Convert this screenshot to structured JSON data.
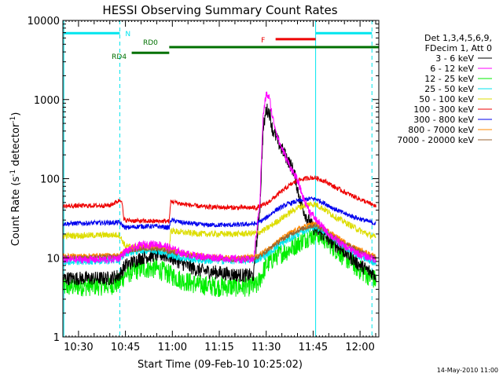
{
  "chart_data": {
    "type": "line",
    "title": "HESSI Observing Summary Count Rates",
    "xlabel": "Start Time (09-Feb-10 10:25:02)",
    "ylabel_main": "Count Rate (s",
    "ylabel_sup1": "-1",
    "ylabel_mid": " detector",
    "ylabel_sup2": "-1",
    "ylabel_end": ")",
    "y_scale": "log",
    "ylim": [
      1,
      10000
    ],
    "xlim_minutes": [
      625,
      726
    ],
    "x_ticks": [
      {
        "min": 630,
        "label": "10:30"
      },
      {
        "min": 645,
        "label": "10:45"
      },
      {
        "min": 660,
        "label": "11:00"
      },
      {
        "min": 675,
        "label": "11:15"
      },
      {
        "min": 690,
        "label": "11:30"
      },
      {
        "min": 705,
        "label": "11:45"
      },
      {
        "min": 720,
        "label": "12:00"
      }
    ],
    "y_ticks": [
      {
        "value": 1,
        "label": "1"
      },
      {
        "value": 10,
        "label": "10"
      },
      {
        "value": 100,
        "label": "100"
      },
      {
        "value": 1000,
        "label": "1000"
      },
      {
        "value": 10000,
        "label": "10000"
      }
    ],
    "legend_header": [
      "Det 1,3,4,5,6,9,",
      "FDecim 1, Att 0"
    ],
    "legend_placement": "right",
    "vertical_lines": [
      {
        "min": 625.3,
        "style": "solid",
        "color": "#00e5ee"
      },
      {
        "min": 643.2,
        "style": "dashed",
        "color": "#00e5ee"
      },
      {
        "min": 705.8,
        "style": "solid",
        "color": "#00e5ee"
      },
      {
        "min": 723.8,
        "style": "dashed",
        "color": "#00e5ee"
      }
    ],
    "flag_bars": [
      {
        "label": "N",
        "segments": [
          [
            625.3,
            643.2
          ],
          [
            705.8,
            723.8
          ]
        ],
        "y_level": 6900,
        "color": "#00e5ee"
      },
      {
        "label": "F",
        "segments": [
          [
            693,
            705.8
          ]
        ],
        "y_level": 5800,
        "color": "#ee0000"
      },
      {
        "label": "RD0",
        "segments": [
          [
            659,
            726
          ]
        ],
        "y_level": 4600,
        "color": "#007000"
      },
      {
        "label": "RD4",
        "segments": [
          [
            647,
            659
          ]
        ],
        "y_level": 3900,
        "color": "#007000"
      }
    ],
    "series": [
      {
        "name": "3 - 6 keV",
        "color": "#000000",
        "points": [
          [
            625,
            5.5
          ],
          [
            640,
            5.5
          ],
          [
            643,
            6
          ],
          [
            645,
            8
          ],
          [
            650,
            10
          ],
          [
            655,
            11
          ],
          [
            659,
            10.5
          ],
          [
            663,
            8.5
          ],
          [
            668,
            7
          ],
          [
            675,
            6.5
          ],
          [
            682,
            6
          ],
          [
            686,
            6
          ],
          [
            688,
            45
          ],
          [
            689,
            400
          ],
          [
            690,
            750
          ],
          [
            691,
            700
          ],
          [
            692,
            420
          ],
          [
            694,
            280
          ],
          [
            697,
            170
          ],
          [
            699,
            120
          ],
          [
            700,
            75
          ],
          [
            701,
            50
          ],
          [
            703,
            32
          ],
          [
            705,
            24
          ],
          [
            707,
            21
          ],
          [
            710,
            17
          ],
          [
            715,
            12
          ],
          [
            720,
            8
          ],
          [
            725,
            6
          ]
        ],
        "noise": 0.09
      },
      {
        "name": "6 - 12 keV",
        "color": "#ff00ff",
        "points": [
          [
            625,
            9.5
          ],
          [
            640,
            9.5
          ],
          [
            643,
            10
          ],
          [
            645,
            12
          ],
          [
            650,
            14.5
          ],
          [
            655,
            15
          ],
          [
            659,
            13.5
          ],
          [
            663,
            11.5
          ],
          [
            668,
            10.5
          ],
          [
            675,
            10
          ],
          [
            682,
            9.5
          ],
          [
            686,
            9.5
          ],
          [
            688,
            55
          ],
          [
            689,
            600
          ],
          [
            690,
            1180
          ],
          [
            691,
            1050
          ],
          [
            692,
            600
          ],
          [
            694,
            300
          ],
          [
            697,
            160
          ],
          [
            700,
            95
          ],
          [
            702,
            55
          ],
          [
            704,
            38
          ],
          [
            706,
            30
          ],
          [
            710,
            20
          ],
          [
            715,
            14
          ],
          [
            720,
            11
          ],
          [
            725,
            9.5
          ]
        ],
        "noise": 0.05
      },
      {
        "name": "12 - 25 keV",
        "color": "#00ee00",
        "points": [
          [
            625,
            4.3
          ],
          [
            640,
            4.5
          ],
          [
            643,
            4.8
          ],
          [
            645,
            6.2
          ],
          [
            650,
            7.3
          ],
          [
            655,
            7.3
          ],
          [
            659,
            6.2
          ],
          [
            663,
            5.2
          ],
          [
            668,
            4.6
          ],
          [
            675,
            4.3
          ],
          [
            682,
            4.3
          ],
          [
            687,
            4.4
          ],
          [
            690,
            8
          ],
          [
            693,
            10.5
          ],
          [
            697,
            12.5
          ],
          [
            700,
            15
          ],
          [
            703,
            18
          ],
          [
            706,
            20
          ],
          [
            709,
            17
          ],
          [
            712,
            13
          ],
          [
            716,
            9.5
          ],
          [
            720,
            7
          ],
          [
            725,
            5.2
          ]
        ],
        "noise": 0.13
      },
      {
        "name": "25 - 50 keV",
        "color": "#00e5ee",
        "points": [
          [
            625,
            9
          ],
          [
            643,
            9.3
          ],
          [
            645,
            11.5
          ],
          [
            650,
            12.5
          ],
          [
            655,
            12.5
          ],
          [
            659,
            11
          ],
          [
            663,
            10
          ],
          [
            670,
            9.3
          ],
          [
            680,
            9.3
          ],
          [
            687,
            9.5
          ],
          [
            690,
            11
          ],
          [
            693,
            13.5
          ],
          [
            697,
            17
          ],
          [
            700,
            20
          ],
          [
            704,
            24
          ],
          [
            706,
            25
          ],
          [
            709,
            21
          ],
          [
            712,
            17
          ],
          [
            716,
            13
          ],
          [
            720,
            10.5
          ],
          [
            725,
            8.5
          ]
        ],
        "noise": 0.05
      },
      {
        "name": "50 - 100 keV",
        "color": "#dddd00",
        "points": [
          [
            625,
            19
          ],
          [
            643,
            19.5
          ],
          [
            645,
            14
          ],
          [
            650,
            13.5
          ],
          [
            655,
            13.5
          ],
          [
            659,
            13
          ],
          [
            659.5,
            22
          ],
          [
            663,
            21
          ],
          [
            670,
            20
          ],
          [
            680,
            20
          ],
          [
            687,
            20.5
          ],
          [
            690,
            23
          ],
          [
            693,
            28
          ],
          [
            697,
            36
          ],
          [
            700,
            43
          ],
          [
            704,
            48
          ],
          [
            706,
            47
          ],
          [
            709,
            40
          ],
          [
            712,
            33
          ],
          [
            716,
            27
          ],
          [
            720,
            22
          ],
          [
            725,
            18
          ]
        ],
        "noise": 0.04
      },
      {
        "name": "100 - 300 keV",
        "color": "#ee0000",
        "points": [
          [
            625,
            45
          ],
          [
            640,
            46
          ],
          [
            643,
            53
          ],
          [
            643.8,
            55
          ],
          [
            644.5,
            30
          ],
          [
            650,
            29
          ],
          [
            655,
            29
          ],
          [
            659,
            29
          ],
          [
            659.5,
            52
          ],
          [
            663,
            48
          ],
          [
            670,
            44
          ],
          [
            680,
            43
          ],
          [
            687,
            43
          ],
          [
            690,
            48
          ],
          [
            693,
            60
          ],
          [
            697,
            80
          ],
          [
            700,
            95
          ],
          [
            704,
            103
          ],
          [
            706,
            102
          ],
          [
            709,
            92
          ],
          [
            712,
            78
          ],
          [
            716,
            65
          ],
          [
            720,
            55
          ],
          [
            725,
            45
          ]
        ],
        "noise": 0.03
      },
      {
        "name": "300 - 800 keV",
        "color": "#0000ee",
        "points": [
          [
            625,
            27
          ],
          [
            643,
            28
          ],
          [
            645,
            24
          ],
          [
            650,
            25
          ],
          [
            655,
            25
          ],
          [
            659,
            24
          ],
          [
            659.5,
            30
          ],
          [
            663,
            28
          ],
          [
            670,
            26
          ],
          [
            680,
            26
          ],
          [
            687,
            27
          ],
          [
            690,
            32
          ],
          [
            693,
            40
          ],
          [
            697,
            48
          ],
          [
            700,
            52
          ],
          [
            704,
            56
          ],
          [
            706,
            55
          ],
          [
            709,
            48
          ],
          [
            712,
            41
          ],
          [
            716,
            35
          ],
          [
            720,
            31
          ],
          [
            725,
            27
          ]
        ],
        "noise": 0.03
      },
      {
        "name": "800 - 7000 keV",
        "color": "#ff8800",
        "points": [
          [
            625,
            10.5
          ],
          [
            643,
            10.8
          ],
          [
            645,
            12.5
          ],
          [
            650,
            14
          ],
          [
            655,
            14
          ],
          [
            659,
            13
          ],
          [
            663,
            11.5
          ],
          [
            670,
            10.5
          ],
          [
            680,
            10
          ],
          [
            687,
            10.5
          ],
          [
            690,
            12.5
          ],
          [
            693,
            15.5
          ],
          [
            697,
            20
          ],
          [
            700,
            23
          ],
          [
            704,
            26.5
          ],
          [
            706,
            27
          ],
          [
            709,
            23
          ],
          [
            712,
            19
          ],
          [
            716,
            15
          ],
          [
            720,
            12.5
          ],
          [
            725,
            10.5
          ]
        ],
        "noise": 0.03
      },
      {
        "name": "7000 - 20000 keV",
        "color": "#996633",
        "points": [
          [
            625,
            10
          ],
          [
            643,
            10.3
          ],
          [
            645,
            12
          ],
          [
            650,
            13
          ],
          [
            655,
            13
          ],
          [
            659,
            12
          ],
          [
            663,
            11
          ],
          [
            670,
            10
          ],
          [
            680,
            9.5
          ],
          [
            687,
            10
          ],
          [
            690,
            12
          ],
          [
            693,
            15
          ],
          [
            697,
            19
          ],
          [
            700,
            22
          ],
          [
            704,
            25
          ],
          [
            706,
            25.5
          ],
          [
            709,
            22
          ],
          [
            712,
            18
          ],
          [
            716,
            14.5
          ],
          [
            720,
            12
          ],
          [
            725,
            10
          ]
        ],
        "noise": 0.03
      }
    ]
  },
  "footer_stamp": "14-May-2010 11:00"
}
